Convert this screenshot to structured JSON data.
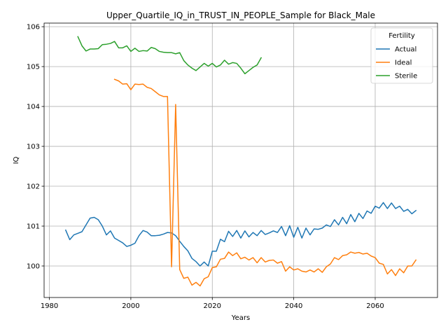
{
  "chart_data": {
    "type": "line",
    "title": "Upper_Quartile_IQ_in_TRUST_IN_PEOPLE_Sample for Black_Male",
    "xlabel": "Years",
    "ylabel": "IQ",
    "xlim": [
      1978.7,
      2075.3
    ],
    "ylim": [
      99.21,
      106.09
    ],
    "xticks": [
      1980,
      2000,
      2020,
      2040,
      2060
    ],
    "yticks": [
      100,
      101,
      102,
      103,
      104,
      105,
      106
    ],
    "grid": true,
    "legend": {
      "title": "Fertility",
      "placement": "top-right"
    },
    "series": [
      {
        "name": "Actual",
        "color": "#1f77b4",
        "x": [
          1984,
          1985,
          1986,
          1987,
          1988,
          1989,
          1990,
          1991,
          1992,
          1993,
          1994,
          1995,
          1996,
          1997,
          1998,
          1999,
          2000,
          2001,
          2002,
          2003,
          2004,
          2005,
          2006,
          2007,
          2008,
          2009,
          2010,
          2011,
          2012,
          2013,
          2014,
          2015,
          2016,
          2017,
          2018,
          2019,
          2020,
          2021,
          2022,
          2023,
          2024,
          2025,
          2026,
          2027,
          2028,
          2029,
          2030,
          2031,
          2032,
          2033,
          2034,
          2035,
          2036,
          2037,
          2038,
          2039,
          2040,
          2041,
          2042,
          2043,
          2044,
          2045,
          2046,
          2047,
          2048,
          2049,
          2050,
          2051,
          2052,
          2053,
          2054,
          2055,
          2056,
          2057,
          2058,
          2059,
          2060,
          2061,
          2062,
          2063,
          2064,
          2065,
          2066,
          2067,
          2068,
          2069,
          2070
        ],
        "values": [
          100.9,
          100.66,
          100.78,
          100.82,
          100.86,
          101.03,
          101.2,
          101.22,
          101.16,
          101.0,
          100.78,
          100.88,
          100.7,
          100.64,
          100.58,
          100.49,
          100.52,
          100.57,
          100.76,
          100.89,
          100.85,
          100.76,
          100.76,
          100.77,
          100.8,
          100.84,
          100.83,
          100.76,
          100.62,
          100.49,
          100.38,
          100.19,
          100.11,
          100.0,
          100.1,
          100.0,
          100.37,
          100.37,
          100.67,
          100.61,
          100.87,
          100.74,
          100.89,
          100.7,
          100.88,
          100.73,
          100.84,
          100.76,
          100.89,
          100.79,
          100.83,
          100.88,
          100.84,
          100.99,
          100.76,
          101.01,
          100.72,
          100.97,
          100.7,
          100.95,
          100.78,
          100.93,
          100.92,
          100.95,
          101.03,
          100.99,
          101.16,
          101.03,
          101.22,
          101.06,
          101.29,
          101.11,
          101.32,
          101.19,
          101.38,
          101.32,
          101.5,
          101.45,
          101.59,
          101.44,
          101.58,
          101.44,
          101.5,
          101.37,
          101.42,
          101.31,
          101.39
        ]
      },
      {
        "name": "Ideal",
        "color": "#ff7f0e",
        "x": [
          1996,
          1997,
          1998,
          1999,
          2000,
          2001,
          2002,
          2003,
          2004,
          2005,
          2006,
          2007,
          2008,
          2009,
          2010,
          2011,
          2012,
          2013,
          2014,
          2015,
          2016,
          2017,
          2018,
          2019,
          2020,
          2021,
          2022,
          2023,
          2024,
          2025,
          2026,
          2027,
          2028,
          2029,
          2030,
          2031,
          2032,
          2033,
          2034,
          2035,
          2036,
          2037,
          2038,
          2039,
          2040,
          2041,
          2042,
          2043,
          2044,
          2045,
          2046,
          2047,
          2048,
          2049,
          2050,
          2051,
          2052,
          2053,
          2054,
          2055,
          2056,
          2057,
          2058,
          2059,
          2060,
          2061,
          2062,
          2063,
          2064,
          2065,
          2066,
          2067,
          2068,
          2069,
          2070
        ],
        "values": [
          104.68,
          104.64,
          104.56,
          104.57,
          104.42,
          104.56,
          104.55,
          104.56,
          104.48,
          104.45,
          104.37,
          104.29,
          104.25,
          104.25,
          99.98,
          104.05,
          99.91,
          99.69,
          99.72,
          99.52,
          99.59,
          99.5,
          99.68,
          99.73,
          99.96,
          99.98,
          100.17,
          100.19,
          100.35,
          100.26,
          100.33,
          100.18,
          100.22,
          100.15,
          100.21,
          100.08,
          100.21,
          100.1,
          100.14,
          100.15,
          100.07,
          100.11,
          99.87,
          99.98,
          99.9,
          99.93,
          99.87,
          99.85,
          99.9,
          99.85,
          99.93,
          99.84,
          99.98,
          100.05,
          100.21,
          100.16,
          100.26,
          100.28,
          100.35,
          100.32,
          100.34,
          100.3,
          100.32,
          100.25,
          100.21,
          100.07,
          100.04,
          99.8,
          99.91,
          99.76,
          99.93,
          99.83,
          100.0,
          100.0,
          100.15
        ]
      },
      {
        "name": "Sterile",
        "color": "#2ca02c",
        "x": [
          1987,
          1988,
          1989,
          1990,
          1991,
          1992,
          1993,
          1994,
          1995,
          1996,
          1997,
          1998,
          1999,
          2000,
          2001,
          2002,
          2003,
          2004,
          2005,
          2006,
          2007,
          2008,
          2009,
          2010,
          2011,
          2012,
          2013,
          2014,
          2015,
          2016,
          2017,
          2018,
          2019,
          2020,
          2021,
          2022,
          2023,
          2024,
          2025,
          2026,
          2027,
          2028,
          2029,
          2030,
          2031,
          2032
        ],
        "values": [
          105.75,
          105.52,
          105.39,
          105.44,
          105.44,
          105.45,
          105.55,
          105.56,
          105.58,
          105.63,
          105.47,
          105.47,
          105.52,
          105.38,
          105.46,
          105.38,
          105.4,
          105.39,
          105.48,
          105.45,
          105.38,
          105.36,
          105.35,
          105.35,
          105.32,
          105.35,
          105.15,
          105.04,
          104.96,
          104.9,
          104.99,
          105.08,
          105.01,
          105.08,
          104.99,
          105.04,
          105.16,
          105.06,
          105.1,
          105.08,
          104.96,
          104.82,
          104.9,
          104.98,
          105.04,
          105.22
        ]
      }
    ]
  }
}
